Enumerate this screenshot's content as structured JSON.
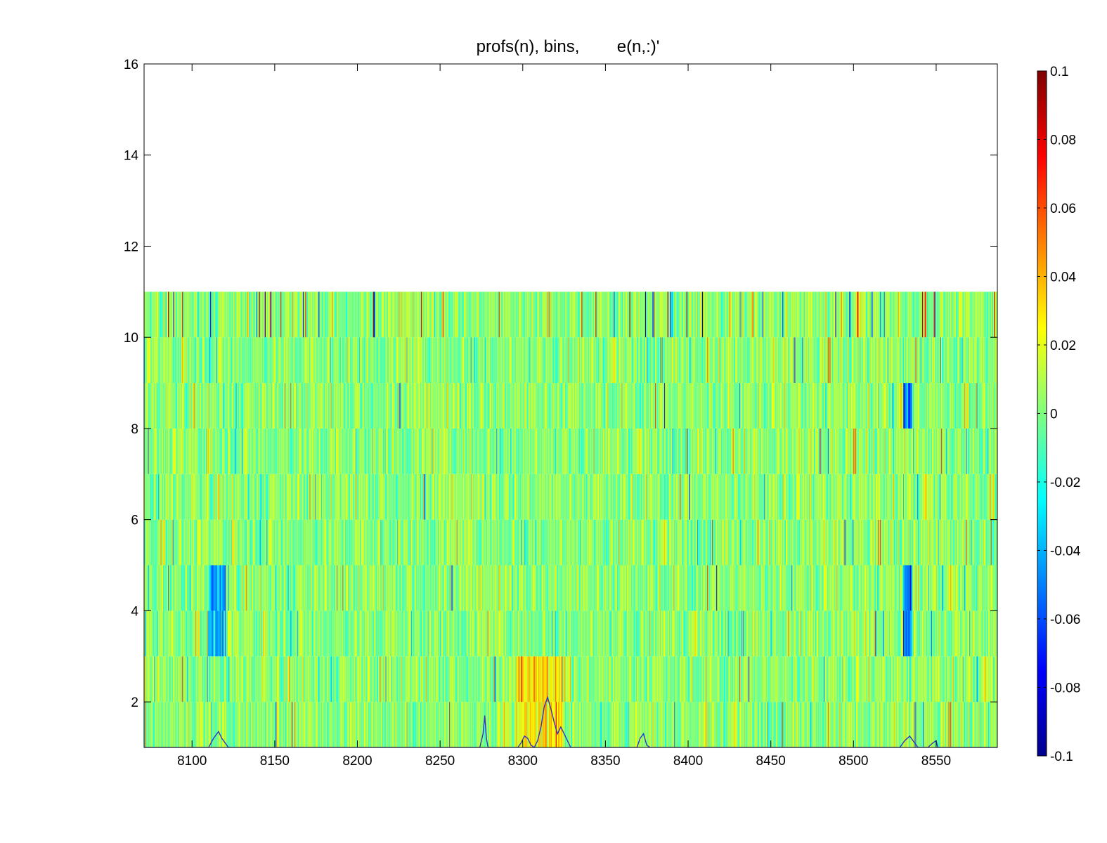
{
  "chart_data": {
    "type": "heatmap",
    "title": "profs(n), bins,        e(n,:)'",
    "xlabel": "",
    "ylabel": "",
    "xlim": [
      8071,
      8587
    ],
    "ylim": [
      1,
      16
    ],
    "x_ticks": [
      8100,
      8150,
      8200,
      8250,
      8300,
      8350,
      8400,
      8450,
      8500,
      8550
    ],
    "x_tick_labels": [
      "8100",
      "8150",
      "8200",
      "8250",
      "8300",
      "8350",
      "8400",
      "8450",
      "8500",
      "8550"
    ],
    "y_ticks": [
      2,
      4,
      6,
      8,
      10,
      12,
      14,
      16
    ],
    "y_tick_labels": [
      "2",
      "4",
      "6",
      "8",
      "10",
      "12",
      "14",
      "16"
    ],
    "bins": [
      1,
      2,
      3,
      4,
      5,
      6,
      7,
      8,
      9,
      10,
      11
    ],
    "bins_with_data": 10,
    "colorbar": {
      "limits": [
        -0.1,
        0.1
      ],
      "ticks": [
        0.1,
        0.08,
        0.06,
        0.04,
        0.02,
        0,
        -0.02,
        -0.04,
        -0.06,
        -0.08,
        -0.1
      ],
      "tick_labels": [
        "0.1",
        "0.08",
        "0.06",
        "0.04",
        "0.02",
        "0",
        "-0.02",
        "-0.04",
        "-0.06",
        "-0.08",
        "-0.1"
      ],
      "colormap": "jet"
    },
    "overlay_line": {
      "color": "#3333cc",
      "points": [
        [
          8071,
          1.0
        ],
        [
          8110,
          1.0
        ],
        [
          8113,
          1.2
        ],
        [
          8116,
          1.35
        ],
        [
          8118,
          1.2
        ],
        [
          8122,
          1.0
        ],
        [
          8274,
          1.0
        ],
        [
          8276,
          1.3
        ],
        [
          8277,
          1.7
        ],
        [
          8278,
          1.2
        ],
        [
          8279,
          1.0
        ],
        [
          8297,
          1.0
        ],
        [
          8299,
          1.1
        ],
        [
          8301,
          1.25
        ],
        [
          8303,
          1.2
        ],
        [
          8305,
          1.05
        ],
        [
          8307,
          1.0
        ],
        [
          8309,
          1.15
        ],
        [
          8311,
          1.45
        ],
        [
          8313,
          1.9
        ],
        [
          8315,
          2.1
        ],
        [
          8317,
          1.85
        ],
        [
          8319,
          1.55
        ],
        [
          8321,
          1.3
        ],
        [
          8323,
          1.45
        ],
        [
          8325,
          1.3
        ],
        [
          8327,
          1.15
        ],
        [
          8329,
          1.0
        ],
        [
          8369,
          1.0
        ],
        [
          8371,
          1.2
        ],
        [
          8373,
          1.3
        ],
        [
          8375,
          1.05
        ],
        [
          8377,
          1.0
        ],
        [
          8528,
          1.0
        ],
        [
          8531,
          1.15
        ],
        [
          8534,
          1.25
        ],
        [
          8536,
          1.15
        ],
        [
          8539,
          1.0
        ],
        [
          8545,
          1.0
        ],
        [
          8548,
          1.1
        ],
        [
          8550,
          1.15
        ],
        [
          8551,
          1.0
        ],
        [
          8587,
          1.0
        ]
      ]
    },
    "highlight_features": [
      {
        "x_range": [
          8110,
          8120
        ],
        "bins": [
          3,
          4
        ],
        "approx_value": -0.05
      },
      {
        "x_range": [
          8530,
          8535
        ],
        "bins": [
          3,
          4,
          8
        ],
        "approx_value": -0.06
      },
      {
        "x_range": [
          8296,
          8325
        ],
        "bins": [
          1,
          2
        ],
        "approx_value": 0.03
      },
      {
        "x_range": [
          8365,
          8415
        ],
        "bins": [
          10
        ],
        "approx_value": 0.0
      }
    ]
  }
}
